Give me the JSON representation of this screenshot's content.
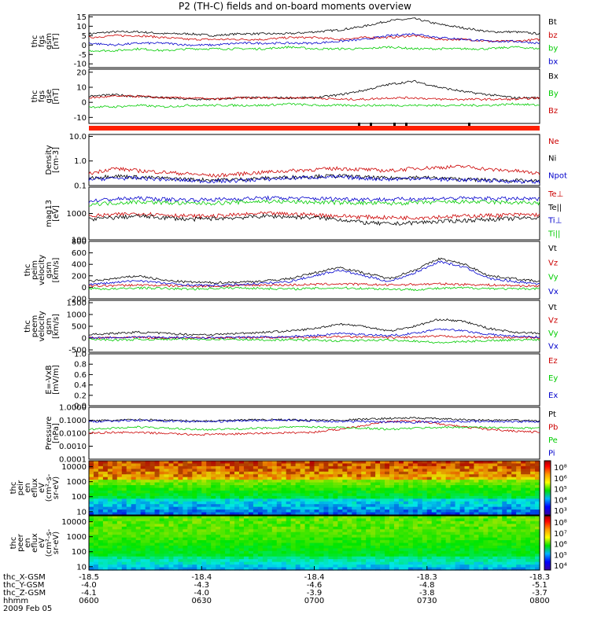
{
  "title": "P2 (TH-C) fields and on-board moments overview",
  "chart_data": [
    {
      "type": "line",
      "ylabel": [
        "thc",
        "fgs",
        "gsm",
        "[nT]"
      ],
      "yticks": [
        "15",
        "10",
        "5",
        "0",
        "-5",
        "-10"
      ],
      "ylim": [
        -12,
        16
      ],
      "series": [
        {
          "name": "Bt",
          "color": "#000000",
          "values": [
            6,
            7,
            7,
            6,
            6,
            5,
            6,
            6,
            6,
            7,
            8,
            10,
            13,
            14,
            11,
            9,
            7,
            7,
            6
          ]
        },
        {
          "name": "bz",
          "color": "#cc0000",
          "values": [
            4,
            5,
            5,
            4,
            3,
            3,
            3,
            3,
            4,
            4,
            3,
            4,
            4,
            5,
            3,
            3,
            2,
            2,
            3
          ]
        },
        {
          "name": "by",
          "color": "#00cc00",
          "values": [
            -3,
            -3,
            -2,
            -3,
            -2,
            -2,
            -2,
            -2,
            -1,
            -2,
            -2,
            -2,
            -1,
            -2,
            -2,
            -2,
            -2,
            -1,
            -2
          ]
        },
        {
          "name": "bx",
          "color": "#0000cc",
          "values": [
            1,
            0,
            1,
            1,
            0,
            0,
            1,
            1,
            1,
            1,
            2,
            3,
            5,
            6,
            4,
            3,
            2,
            2,
            1
          ]
        }
      ]
    },
    {
      "type": "line",
      "ylabel": [
        "thc",
        "fgs",
        "gse",
        "[nT]"
      ],
      "yticks": [
        "20",
        "10",
        "0",
        "-10"
      ],
      "ylim": [
        -14,
        22
      ],
      "series": [
        {
          "name": "Bx",
          "color": "#000000",
          "values": [
            4,
            5,
            4,
            3,
            2,
            2,
            3,
            3,
            3,
            3,
            5,
            8,
            12,
            14,
            10,
            7,
            5,
            3,
            3
          ]
        },
        {
          "name": "By",
          "color": "#00cc00",
          "values": [
            -3,
            -3,
            -2,
            -3,
            -2,
            -2,
            -2,
            -2,
            -1,
            -2,
            -2,
            -2,
            -2,
            -2,
            -2,
            -2,
            -2,
            -1,
            -2
          ]
        },
        {
          "name": "Bz",
          "color": "#cc0000",
          "values": [
            3,
            4,
            4,
            3,
            3,
            2,
            3,
            3,
            3,
            3,
            2,
            2,
            3,
            3,
            2,
            2,
            2,
            2,
            3
          ]
        }
      ]
    },
    {
      "type": "line",
      "ylabel": [
        "Density",
        "[cm-3]"
      ],
      "yticks": [
        "10.0",
        "1.0",
        "0.1"
      ],
      "yscale": "log",
      "ylim": [
        0.1,
        12
      ],
      "series": [
        {
          "name": "Ne",
          "color": "#cc0000",
          "values": [
            0.3,
            0.5,
            0.4,
            0.35,
            0.3,
            0.25,
            0.3,
            0.35,
            0.4,
            0.45,
            0.5,
            0.45,
            0.4,
            0.5,
            0.55,
            0.6,
            0.45,
            0.4,
            0.3
          ]
        },
        {
          "name": "Ni",
          "color": "#000000",
          "values": [
            0.2,
            0.25,
            0.22,
            0.2,
            0.18,
            0.17,
            0.18,
            0.2,
            0.22,
            0.24,
            0.25,
            0.22,
            0.2,
            0.22,
            0.2,
            0.18,
            0.17,
            0.16,
            0.15
          ]
        },
        {
          "name": "Npot",
          "color": "#0000cc",
          "values": [
            0.18,
            0.2,
            0.2,
            0.18,
            0.16,
            0.15,
            0.16,
            0.18,
            0.2,
            0.22,
            0.22,
            0.2,
            0.18,
            0.2,
            0.18,
            0.17,
            0.16,
            0.15,
            0.14
          ]
        }
      ]
    },
    {
      "type": "line",
      "ylabel": [
        "mag13",
        "[eV]"
      ],
      "yticks": [
        "1000",
        "100"
      ],
      "yscale": "log",
      "ylim": [
        100,
        10000
      ],
      "series": [
        {
          "name": "Te⊥",
          "color": "#cc0000",
          "values": [
            800,
            900,
            1000,
            900,
            800,
            800,
            900,
            1000,
            950,
            900,
            800,
            750,
            700,
            700,
            750,
            800,
            850,
            900,
            900
          ]
        },
        {
          "name": "Te||",
          "color": "#000000",
          "values": [
            600,
            700,
            800,
            700,
            600,
            650,
            700,
            800,
            750,
            700,
            600,
            450,
            400,
            450,
            500,
            550,
            600,
            650,
            700
          ]
        },
        {
          "name": "Ti⊥",
          "color": "#0000cc",
          "values": [
            3000,
            3500,
            3800,
            3500,
            3300,
            3400,
            3600,
            3900,
            3800,
            3700,
            3600,
            3500,
            3400,
            3600,
            3700,
            3800,
            3700,
            3600,
            3500
          ]
        },
        {
          "name": "Ti||",
          "color": "#00cc00",
          "values": [
            2300,
            2500,
            2800,
            2600,
            2400,
            2500,
            2700,
            2900,
            2800,
            2700,
            2600,
            2500,
            2400,
            2600,
            2700,
            2800,
            2700,
            2600,
            2500
          ]
        }
      ]
    },
    {
      "type": "line",
      "ylabel": [
        "thc",
        "peim",
        "velocity",
        "gsm",
        "[km/s]"
      ],
      "yticks": [
        "800",
        "600",
        "400",
        "200",
        "0",
        "-200"
      ],
      "ylim": [
        -200,
        800
      ],
      "series": [
        {
          "name": "Vt",
          "color": "#000000",
          "values": [
            100,
            150,
            200,
            120,
            90,
            80,
            90,
            110,
            150,
            250,
            350,
            250,
            150,
            300,
            500,
            400,
            200,
            150,
            100
          ]
        },
        {
          "name": "Vz",
          "color": "#cc0000",
          "values": [
            20,
            30,
            40,
            30,
            20,
            20,
            30,
            40,
            40,
            50,
            60,
            50,
            40,
            50,
            60,
            50,
            40,
            30,
            20
          ]
        },
        {
          "name": "Vy",
          "color": "#00cc00",
          "values": [
            -20,
            -30,
            -10,
            -20,
            -30,
            -20,
            -10,
            -20,
            -30,
            -20,
            -10,
            -20,
            -30,
            -40,
            -20,
            -10,
            -20,
            -30,
            -20
          ]
        },
        {
          "name": "Vx",
          "color": "#0000cc",
          "values": [
            50,
            80,
            120,
            70,
            40,
            30,
            50,
            70,
            100,
            200,
            300,
            200,
            100,
            250,
            450,
            350,
            150,
            100,
            60
          ]
        }
      ]
    },
    {
      "type": "line",
      "ylabel": [
        "thc",
        "peem",
        "velocity",
        "gsm",
        "[km/s]"
      ],
      "yticks": [
        "1500",
        "1000",
        "500",
        "0",
        "-500"
      ],
      "ylim": [
        -600,
        1600
      ],
      "series": [
        {
          "name": "Vt",
          "color": "#000000",
          "values": [
            150,
            200,
            250,
            200,
            150,
            150,
            200,
            250,
            300,
            400,
            600,
            500,
            300,
            500,
            800,
            700,
            400,
            250,
            200
          ]
        },
        {
          "name": "Vz",
          "color": "#cc0000",
          "values": [
            0,
            20,
            30,
            10,
            0,
            10,
            20,
            30,
            20,
            40,
            60,
            40,
            20,
            40,
            80,
            60,
            30,
            20,
            10
          ]
        },
        {
          "name": "Vy",
          "color": "#00cc00",
          "values": [
            -50,
            -80,
            -60,
            -50,
            -40,
            -50,
            -60,
            -80,
            -70,
            -90,
            -120,
            -100,
            -80,
            -120,
            -200,
            -150,
            -100,
            -80,
            -60
          ]
        },
        {
          "name": "Vx",
          "color": "#0000cc",
          "values": [
            20,
            30,
            50,
            30,
            20,
            20,
            30,
            50,
            60,
            100,
            200,
            150,
            100,
            200,
            400,
            300,
            150,
            80,
            40
          ]
        }
      ]
    },
    {
      "type": "line",
      "ylabel": [
        "E=-VxB",
        "[mV/m]"
      ],
      "yticks": [
        "1.0",
        "0.8",
        "0.6",
        "0.4",
        "0.2",
        "0.0"
      ],
      "ylim": [
        0,
        1
      ],
      "series": [
        {
          "name": "Ez",
          "color": "#cc0000",
          "values": []
        },
        {
          "name": "Ey",
          "color": "#00cc00",
          "values": []
        },
        {
          "name": "Ex",
          "color": "#0000cc",
          "values": []
        }
      ]
    },
    {
      "type": "line",
      "ylabel": [
        "Pressure",
        "[nPa]"
      ],
      "yticks": [
        "1.0000",
        "0.1000",
        "0.0100",
        "0.0010",
        "0.0001"
      ],
      "yscale": "log",
      "ylim": [
        0.0001,
        1
      ],
      "series": [
        {
          "name": "Pt",
          "color": "#000000",
          "values": [
            0.09,
            0.1,
            0.11,
            0.1,
            0.09,
            0.09,
            0.1,
            0.11,
            0.11,
            0.1,
            0.1,
            0.12,
            0.14,
            0.15,
            0.13,
            0.11,
            0.1,
            0.1,
            0.09
          ]
        },
        {
          "name": "Pb",
          "color": "#cc0000",
          "values": [
            0.01,
            0.012,
            0.011,
            0.01,
            0.008,
            0.008,
            0.009,
            0.01,
            0.011,
            0.012,
            0.02,
            0.04,
            0.08,
            0.09,
            0.05,
            0.03,
            0.02,
            0.015,
            0.012
          ]
        },
        {
          "name": "Pe",
          "color": "#00cc00",
          "values": [
            0.02,
            0.025,
            0.03,
            0.025,
            0.02,
            0.02,
            0.022,
            0.025,
            0.03,
            0.03,
            0.028,
            0.025,
            0.02,
            0.025,
            0.028,
            0.03,
            0.028,
            0.025,
            0.025
          ]
        },
        {
          "name": "Pi",
          "color": "#0000cc",
          "values": [
            0.08,
            0.09,
            0.1,
            0.09,
            0.08,
            0.08,
            0.09,
            0.1,
            0.1,
            0.09,
            0.08,
            0.08,
            0.07,
            0.07,
            0.08,
            0.08,
            0.08,
            0.08,
            0.08
          ]
        }
      ]
    },
    {
      "type": "heatmap",
      "ylabel": [
        "thc",
        "peir",
        "en",
        "eflux",
        "eV",
        "(cm²-s-",
        "sr-eV)"
      ],
      "yticks": [
        "10000",
        "1000",
        "100",
        "10"
      ],
      "yscale": "log",
      "ylim": [
        6,
        25000
      ],
      "colorbar_ticks": [
        "10⁸",
        "10⁶",
        "10⁵",
        "10⁴",
        "10³"
      ]
    },
    {
      "type": "heatmap",
      "ylabel": [
        "thc",
        "peer",
        "en",
        "eflux",
        "eV",
        "(cm²-s-",
        "sr-eV)"
      ],
      "yticks": [
        "10000",
        "1000",
        "100",
        "10"
      ],
      "yscale": "log",
      "ylim": [
        6,
        25000
      ],
      "colorbar_ticks": [
        "10⁸",
        "10⁷",
        "10⁶",
        "10⁵",
        "10⁴"
      ]
    }
  ],
  "xaxis": {
    "rows": [
      {
        "label": "thc_X-GSM",
        "values": [
          "-18.5",
          "-18.4",
          "-18.4",
          "-18.3",
          "-18.3"
        ]
      },
      {
        "label": "thc_Y-GSM",
        "values": [
          "-4.0",
          "-4.3",
          "-4.6",
          "-4.8",
          "-5.1"
        ]
      },
      {
        "label": "thc_Z-GSM",
        "values": [
          "-4.1",
          "-4.0",
          "-3.9",
          "-3.8",
          "-3.7"
        ]
      },
      {
        "label": "hhmm",
        "values": [
          "0600",
          "0630",
          "0700",
          "0730",
          "0800"
        ]
      }
    ],
    "date": "2009 Feb 05"
  }
}
